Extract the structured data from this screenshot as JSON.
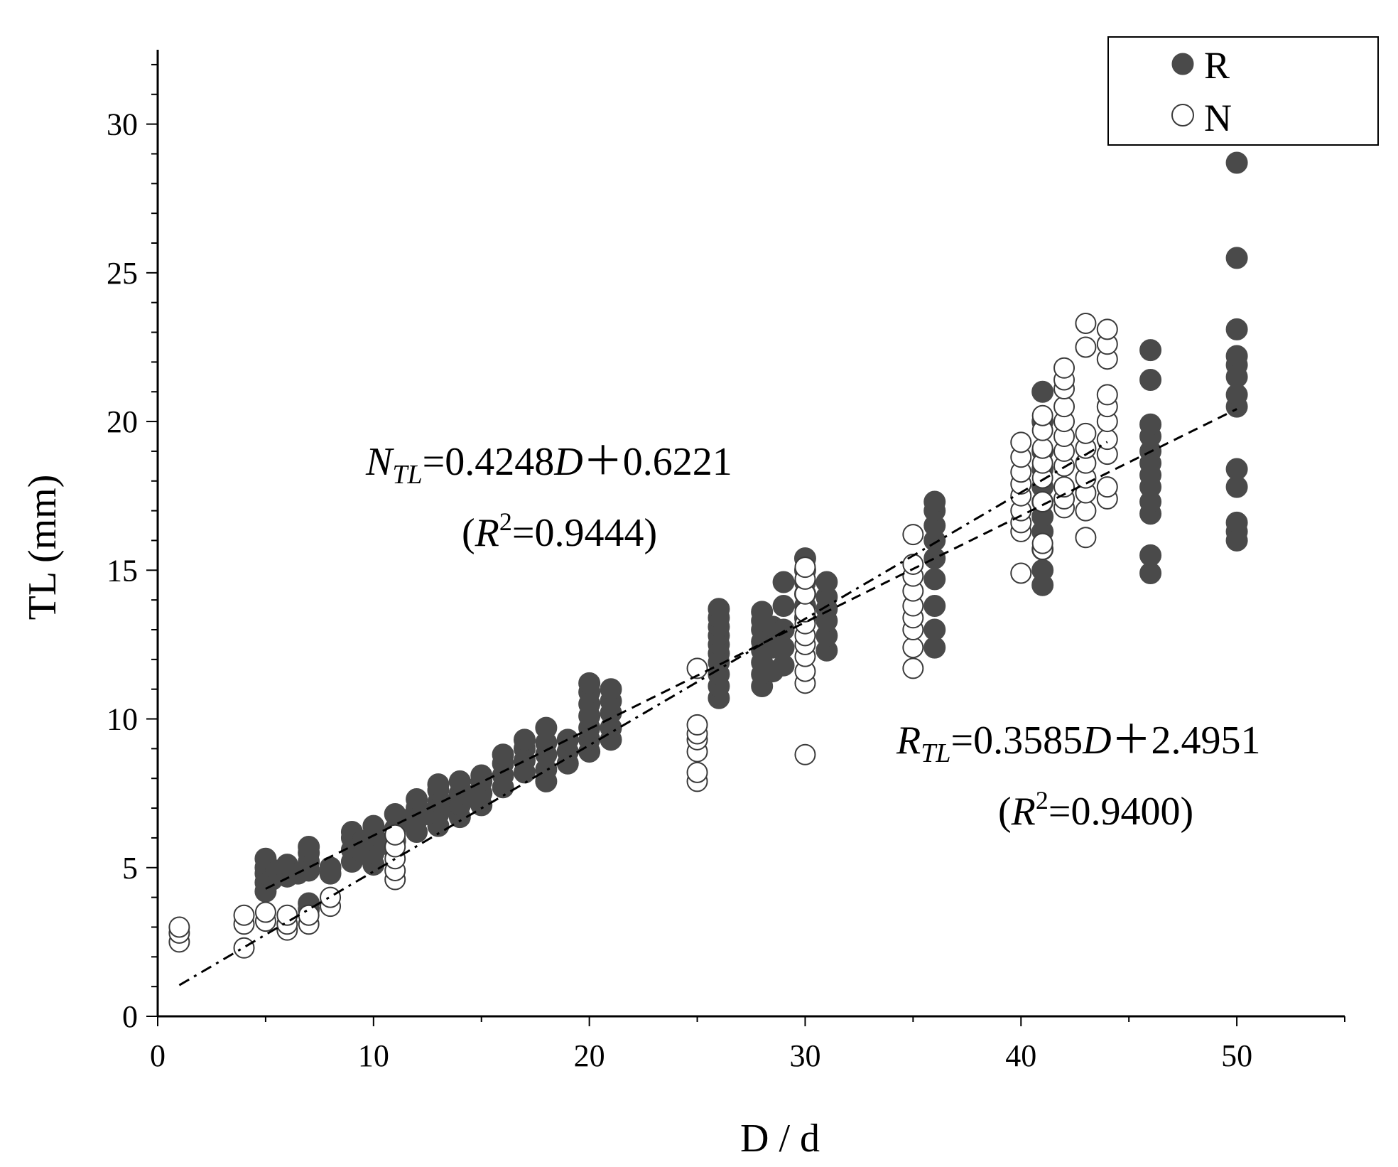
{
  "colors": {
    "series_R_fill": "#4a4a4a",
    "series_N_fill": "#ffffff",
    "series_N_stroke": "#3a3a3a",
    "axis": "#000000",
    "axis_title_y": "#4a2c1a"
  },
  "chart_data": {
    "type": "scatter",
    "title": "",
    "xlabel": "D / d",
    "ylabel": "TL (mm)",
    "xlim": [
      0,
      55
    ],
    "ylim": [
      0,
      32.5
    ],
    "xticks": [
      0,
      10,
      20,
      30,
      40,
      50
    ],
    "yticks": [
      0,
      5,
      10,
      15,
      20,
      25,
      30
    ],
    "xtick_labels": [
      "0",
      "10",
      "20",
      "30",
      "40",
      "50"
    ],
    "ytick_labels": [
      "0",
      "5",
      "10",
      "15",
      "20",
      "25",
      "30"
    ],
    "legend": {
      "position": "top-right",
      "entries": [
        {
          "name": "R",
          "marker": "filled-circle"
        },
        {
          "name": "N",
          "marker": "open-circle"
        }
      ]
    },
    "series": [
      {
        "name": "R",
        "points": [
          [
            5,
            4.2
          ],
          [
            5,
            4.5
          ],
          [
            5,
            4.8
          ],
          [
            5,
            5.0
          ],
          [
            5,
            5.3
          ],
          [
            5.3,
            4.6
          ],
          [
            5.5,
            4.9
          ],
          [
            6,
            4.7
          ],
          [
            6,
            4.9
          ],
          [
            6,
            5.1
          ],
          [
            6.5,
            4.8
          ],
          [
            7,
            3.6
          ],
          [
            7,
            3.8
          ],
          [
            7,
            4.9
          ],
          [
            7,
            5.2
          ],
          [
            7,
            5.5
          ],
          [
            7,
            5.7
          ],
          [
            8,
            4.8
          ],
          [
            8,
            5.0
          ],
          [
            9,
            5.2
          ],
          [
            9,
            5.6
          ],
          [
            9,
            6.0
          ],
          [
            9,
            6.2
          ],
          [
            9.5,
            5.5
          ],
          [
            9.5,
            5.9
          ],
          [
            10,
            5.1
          ],
          [
            10,
            5.5
          ],
          [
            10,
            5.9
          ],
          [
            10,
            6.1
          ],
          [
            10,
            6.4
          ],
          [
            10.5,
            5.8
          ],
          [
            11,
            5.9
          ],
          [
            11,
            6.3
          ],
          [
            11,
            6.8
          ],
          [
            11.5,
            6.6
          ],
          [
            12,
            6.2
          ],
          [
            12,
            6.6
          ],
          [
            12,
            7.0
          ],
          [
            12,
            7.3
          ],
          [
            12.5,
            6.8
          ],
          [
            13,
            6.4
          ],
          [
            13,
            6.8
          ],
          [
            13,
            7.2
          ],
          [
            13,
            7.6
          ],
          [
            13,
            7.8
          ],
          [
            13.5,
            7.1
          ],
          [
            14,
            6.7
          ],
          [
            14,
            7.1
          ],
          [
            14,
            7.5
          ],
          [
            14,
            7.9
          ],
          [
            14.5,
            7.4
          ],
          [
            15,
            7.1
          ],
          [
            15,
            7.5
          ],
          [
            15,
            7.9
          ],
          [
            15,
            8.1
          ],
          [
            16,
            7.7
          ],
          [
            16,
            8.1
          ],
          [
            16,
            8.5
          ],
          [
            16,
            8.8
          ],
          [
            17,
            8.2
          ],
          [
            17,
            8.6
          ],
          [
            17,
            9.0
          ],
          [
            17,
            9.3
          ],
          [
            18,
            7.9
          ],
          [
            18,
            8.3
          ],
          [
            18,
            8.8
          ],
          [
            18,
            9.2
          ],
          [
            18,
            9.7
          ],
          [
            19,
            8.5
          ],
          [
            19,
            8.9
          ],
          [
            19,
            9.3
          ],
          [
            20,
            8.9
          ],
          [
            20,
            9.3
          ],
          [
            20,
            9.7
          ],
          [
            20,
            10.1
          ],
          [
            20,
            10.5
          ],
          [
            20,
            10.9
          ],
          [
            20,
            11.2
          ],
          [
            21,
            9.3
          ],
          [
            21,
            9.7
          ],
          [
            21,
            10.2
          ],
          [
            21,
            10.6
          ],
          [
            21,
            11.0
          ],
          [
            26,
            10.7
          ],
          [
            26,
            11.1
          ],
          [
            26,
            11.5
          ],
          [
            26,
            11.9
          ],
          [
            26,
            12.2
          ],
          [
            26,
            12.5
          ],
          [
            26,
            12.8
          ],
          [
            26,
            13.1
          ],
          [
            26,
            13.4
          ],
          [
            26,
            13.7
          ],
          [
            28,
            11.1
          ],
          [
            28,
            11.5
          ],
          [
            28,
            11.9
          ],
          [
            28,
            12.3
          ],
          [
            28,
            12.6
          ],
          [
            28,
            13.0
          ],
          [
            28,
            13.3
          ],
          [
            28,
            13.6
          ],
          [
            28.5,
            11.6
          ],
          [
            28.5,
            12.4
          ],
          [
            28.5,
            13.1
          ],
          [
            29,
            11.8
          ],
          [
            29,
            12.4
          ],
          [
            29,
            13.0
          ],
          [
            29,
            13.8
          ],
          [
            29,
            14.6
          ],
          [
            30,
            13.4
          ],
          [
            30,
            13.8
          ],
          [
            30,
            14.2
          ],
          [
            30,
            14.6
          ],
          [
            30,
            15.0
          ],
          [
            30,
            15.4
          ],
          [
            31,
            12.3
          ],
          [
            31,
            12.8
          ],
          [
            31,
            13.3
          ],
          [
            31,
            13.7
          ],
          [
            31,
            14.1
          ],
          [
            31,
            14.6
          ],
          [
            36,
            12.4
          ],
          [
            36,
            13.0
          ],
          [
            36,
            13.8
          ],
          [
            36,
            14.7
          ],
          [
            36,
            15.4
          ],
          [
            36,
            16.0
          ],
          [
            36,
            16.5
          ],
          [
            36,
            17.0
          ],
          [
            36,
            17.3
          ],
          [
            41,
            14.5
          ],
          [
            41,
            15.0
          ],
          [
            41,
            15.7
          ],
          [
            41,
            16.3
          ],
          [
            41,
            16.8
          ],
          [
            41,
            17.3
          ],
          [
            41,
            17.8
          ],
          [
            41,
            18.4
          ],
          [
            41,
            19.0
          ],
          [
            41,
            20.0
          ],
          [
            41,
            21.0
          ],
          [
            46,
            14.9
          ],
          [
            46,
            15.5
          ],
          [
            46,
            16.9
          ],
          [
            46,
            17.3
          ],
          [
            46,
            17.8
          ],
          [
            46,
            18.2
          ],
          [
            46,
            18.6
          ],
          [
            46,
            19.0
          ],
          [
            46,
            19.5
          ],
          [
            46,
            19.9
          ],
          [
            46,
            21.4
          ],
          [
            46,
            22.4
          ],
          [
            50,
            16.0
          ],
          [
            50,
            16.3
          ],
          [
            50,
            16.6
          ],
          [
            50,
            17.8
          ],
          [
            50,
            18.4
          ],
          [
            50,
            20.5
          ],
          [
            50,
            20.9
          ],
          [
            50,
            21.5
          ],
          [
            50,
            21.9
          ],
          [
            50,
            22.2
          ],
          [
            50,
            23.1
          ],
          [
            50,
            25.5
          ],
          [
            50,
            28.7
          ]
        ]
      },
      {
        "name": "N",
        "points": [
          [
            1,
            2.5
          ],
          [
            1,
            2.8
          ],
          [
            1,
            3.0
          ],
          [
            4,
            2.3
          ],
          [
            4,
            3.1
          ],
          [
            4,
            3.4
          ],
          [
            5,
            3.2
          ],
          [
            5,
            3.5
          ],
          [
            6,
            2.9
          ],
          [
            6,
            3.1
          ],
          [
            6,
            3.4
          ],
          [
            7,
            3.1
          ],
          [
            7,
            3.4
          ],
          [
            8,
            3.7
          ],
          [
            8,
            4.0
          ],
          [
            11,
            4.6
          ],
          [
            11,
            4.9
          ],
          [
            11,
            5.3
          ],
          [
            11,
            5.7
          ],
          [
            11,
            6.1
          ],
          [
            25,
            7.9
          ],
          [
            25,
            8.2
          ],
          [
            25,
            8.9
          ],
          [
            25,
            9.3
          ],
          [
            25,
            9.5
          ],
          [
            25,
            9.8
          ],
          [
            25,
            11.7
          ],
          [
            30,
            8.8
          ],
          [
            30,
            11.2
          ],
          [
            30,
            11.6
          ],
          [
            30,
            12.1
          ],
          [
            30,
            12.5
          ],
          [
            30,
            12.8
          ],
          [
            30,
            13.2
          ],
          [
            30,
            13.6
          ],
          [
            30,
            14.2
          ],
          [
            30,
            14.7
          ],
          [
            30,
            15.1
          ],
          [
            35,
            11.7
          ],
          [
            35,
            12.4
          ],
          [
            35,
            13.0
          ],
          [
            35,
            13.4
          ],
          [
            35,
            13.8
          ],
          [
            35,
            14.3
          ],
          [
            35,
            14.8
          ],
          [
            35,
            15.2
          ],
          [
            35,
            16.2
          ],
          [
            40,
            14.9
          ],
          [
            40,
            16.3
          ],
          [
            40,
            16.6
          ],
          [
            40,
            17.0
          ],
          [
            40,
            17.5
          ],
          [
            40,
            17.9
          ],
          [
            40,
            18.3
          ],
          [
            40,
            18.8
          ],
          [
            40,
            19.3
          ],
          [
            41,
            15.7
          ],
          [
            41,
            15.9
          ],
          [
            41,
            17.3
          ],
          [
            41,
            18.1
          ],
          [
            41,
            18.6
          ],
          [
            41,
            19.1
          ],
          [
            41,
            19.7
          ],
          [
            41,
            20.2
          ],
          [
            42,
            17.1
          ],
          [
            42,
            17.4
          ],
          [
            42,
            17.8
          ],
          [
            42,
            18.5
          ],
          [
            42,
            19.0
          ],
          [
            42,
            19.5
          ],
          [
            42,
            20.0
          ],
          [
            42,
            20.5
          ],
          [
            42,
            21.1
          ],
          [
            42,
            21.4
          ],
          [
            42,
            21.8
          ],
          [
            43,
            16.1
          ],
          [
            43,
            17.0
          ],
          [
            43,
            17.6
          ],
          [
            43,
            18.1
          ],
          [
            43,
            18.6
          ],
          [
            43,
            19.1
          ],
          [
            43,
            19.6
          ],
          [
            43,
            22.5
          ],
          [
            43,
            23.3
          ],
          [
            44,
            17.4
          ],
          [
            44,
            17.8
          ],
          [
            44,
            18.9
          ],
          [
            44,
            19.4
          ],
          [
            44,
            20.0
          ],
          [
            44,
            20.5
          ],
          [
            44,
            20.9
          ],
          [
            44,
            22.1
          ],
          [
            44,
            22.6
          ],
          [
            44,
            23.1
          ]
        ]
      }
    ],
    "fits": [
      {
        "series": "N",
        "slope": 0.4248,
        "intercept": 0.6221,
        "x_range": [
          1,
          44
        ],
        "style": "dash-dot"
      },
      {
        "series": "R",
        "slope": 0.3585,
        "intercept": 2.4951,
        "x_range": [
          5,
          50
        ],
        "style": "dashed"
      }
    ],
    "annotations": {
      "n_eq": {
        "letter": "N",
        "sub": "TL",
        "rhs_a": "=0.4248",
        "var": "D",
        "rhs_b": "＋0.6221"
      },
      "n_r2": {
        "open": "(",
        "letter": "R",
        "sup": "2",
        "rest": "=0.9444)"
      },
      "r_eq": {
        "letter": "R",
        "sub": "TL",
        "rhs_a": "=0.3585",
        "var": "D",
        "rhs_b": "＋2.4951"
      },
      "r_r2": {
        "open": "(",
        "letter": "R",
        "sup": "2",
        "rest": "=0.9400)"
      }
    }
  }
}
